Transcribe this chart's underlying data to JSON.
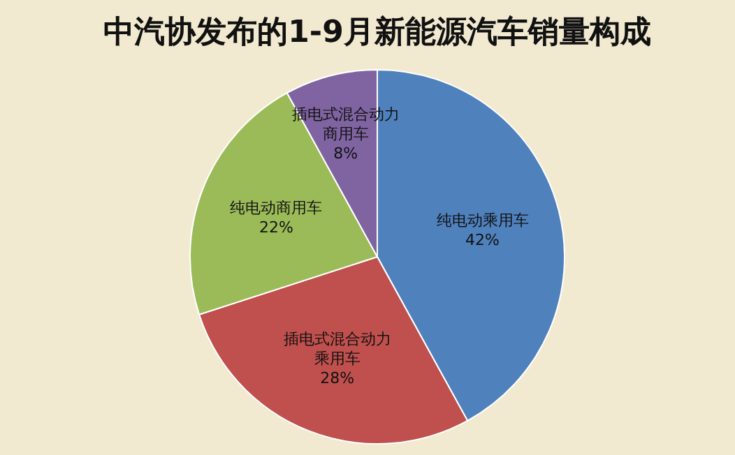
{
  "chart_data": {
    "type": "pie",
    "title": "中汽协发布的1-9月新能源汽车销量构成",
    "categories": [
      "纯电动乘用车",
      "插电式混合动力乘用车",
      "纯电动商用车",
      "插电式混合动力商用车"
    ],
    "values": [
      42,
      28,
      22,
      8
    ],
    "colors": [
      "#4f81bd",
      "#c0504d",
      "#9bbb59",
      "#8064a2"
    ],
    "value_labels": [
      "42%",
      "28%",
      "22%",
      "8%"
    ]
  }
}
